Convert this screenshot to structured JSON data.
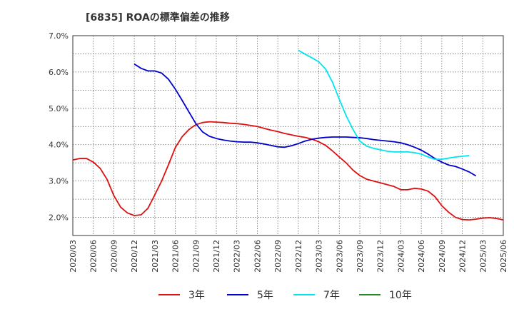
{
  "chart_data": {
    "type": "line",
    "title": "[6835]  ROAの標準偏差の推移",
    "xlabel": "",
    "ylabel": "",
    "ylim": [
      1.5,
      7.0
    ],
    "yticks": [
      2.0,
      3.0,
      4.0,
      5.0,
      6.0,
      7.0
    ],
    "ytick_labels": [
      "2.0%",
      "3.0%",
      "4.0%",
      "5.0%",
      "6.0%",
      "7.0%"
    ],
    "x_start": "2020-03",
    "x_end": "2025-06",
    "xtick_labels": [
      "2020/03",
      "2020/06",
      "2020/09",
      "2020/12",
      "2021/03",
      "2021/06",
      "2021/09",
      "2021/12",
      "2022/03",
      "2022/06",
      "2022/09",
      "2022/12",
      "2023/03",
      "2023/06",
      "2023/09",
      "2023/12",
      "2024/03",
      "2024/06",
      "2024/09",
      "2024/12",
      "2025/03",
      "2025/06"
    ],
    "grid": true,
    "legend_position": "bottom",
    "series": [
      {
        "name": "3年",
        "color": "#dd1111",
        "start": "2020-03",
        "values": [
          3.58,
          3.62,
          3.62,
          3.52,
          3.35,
          3.05,
          2.6,
          2.28,
          2.12,
          2.05,
          2.07,
          2.25,
          2.62,
          3.0,
          3.45,
          3.92,
          4.22,
          4.42,
          4.55,
          4.61,
          4.63,
          4.62,
          4.61,
          4.59,
          4.58,
          4.56,
          4.53,
          4.5,
          4.45,
          4.4,
          4.36,
          4.31,
          4.27,
          4.23,
          4.2,
          4.15,
          4.08,
          3.98,
          3.83,
          3.66,
          3.5,
          3.3,
          3.15,
          3.05,
          3.0,
          2.95,
          2.9,
          2.85,
          2.76,
          2.76,
          2.8,
          2.78,
          2.72,
          2.57,
          2.32,
          2.14,
          2.0,
          1.94,
          1.93,
          1.95,
          1.98,
          1.99,
          1.97,
          1.93
        ]
      },
      {
        "name": "5年",
        "color": "#0000cc",
        "start": "2020-12",
        "values": [
          6.22,
          6.1,
          6.03,
          6.03,
          5.97,
          5.8,
          5.53,
          5.22,
          4.9,
          4.58,
          4.35,
          4.23,
          4.17,
          4.13,
          4.1,
          4.08,
          4.07,
          4.07,
          4.05,
          4.02,
          3.98,
          3.94,
          3.93,
          3.97,
          4.03,
          4.1,
          4.15,
          4.18,
          4.2,
          4.21,
          4.21,
          4.21,
          4.2,
          4.19,
          4.17,
          4.14,
          4.12,
          4.1,
          4.08,
          4.05,
          4.0,
          3.93,
          3.85,
          3.74,
          3.62,
          3.52,
          3.44,
          3.4,
          3.33,
          3.25,
          3.14
        ]
      },
      {
        "name": "7年",
        "color": "#00e5ee",
        "start": "2022-12",
        "values": [
          6.6,
          6.49,
          6.39,
          6.28,
          6.08,
          5.72,
          5.25,
          4.8,
          4.42,
          4.1,
          3.96,
          3.9,
          3.86,
          3.82,
          3.8,
          3.8,
          3.8,
          3.78,
          3.74,
          3.66,
          3.6,
          3.6,
          3.63,
          3.66,
          3.68,
          3.7
        ]
      },
      {
        "name": "10年",
        "color": "#228b22",
        "start": "2025-03",
        "values": []
      }
    ]
  }
}
